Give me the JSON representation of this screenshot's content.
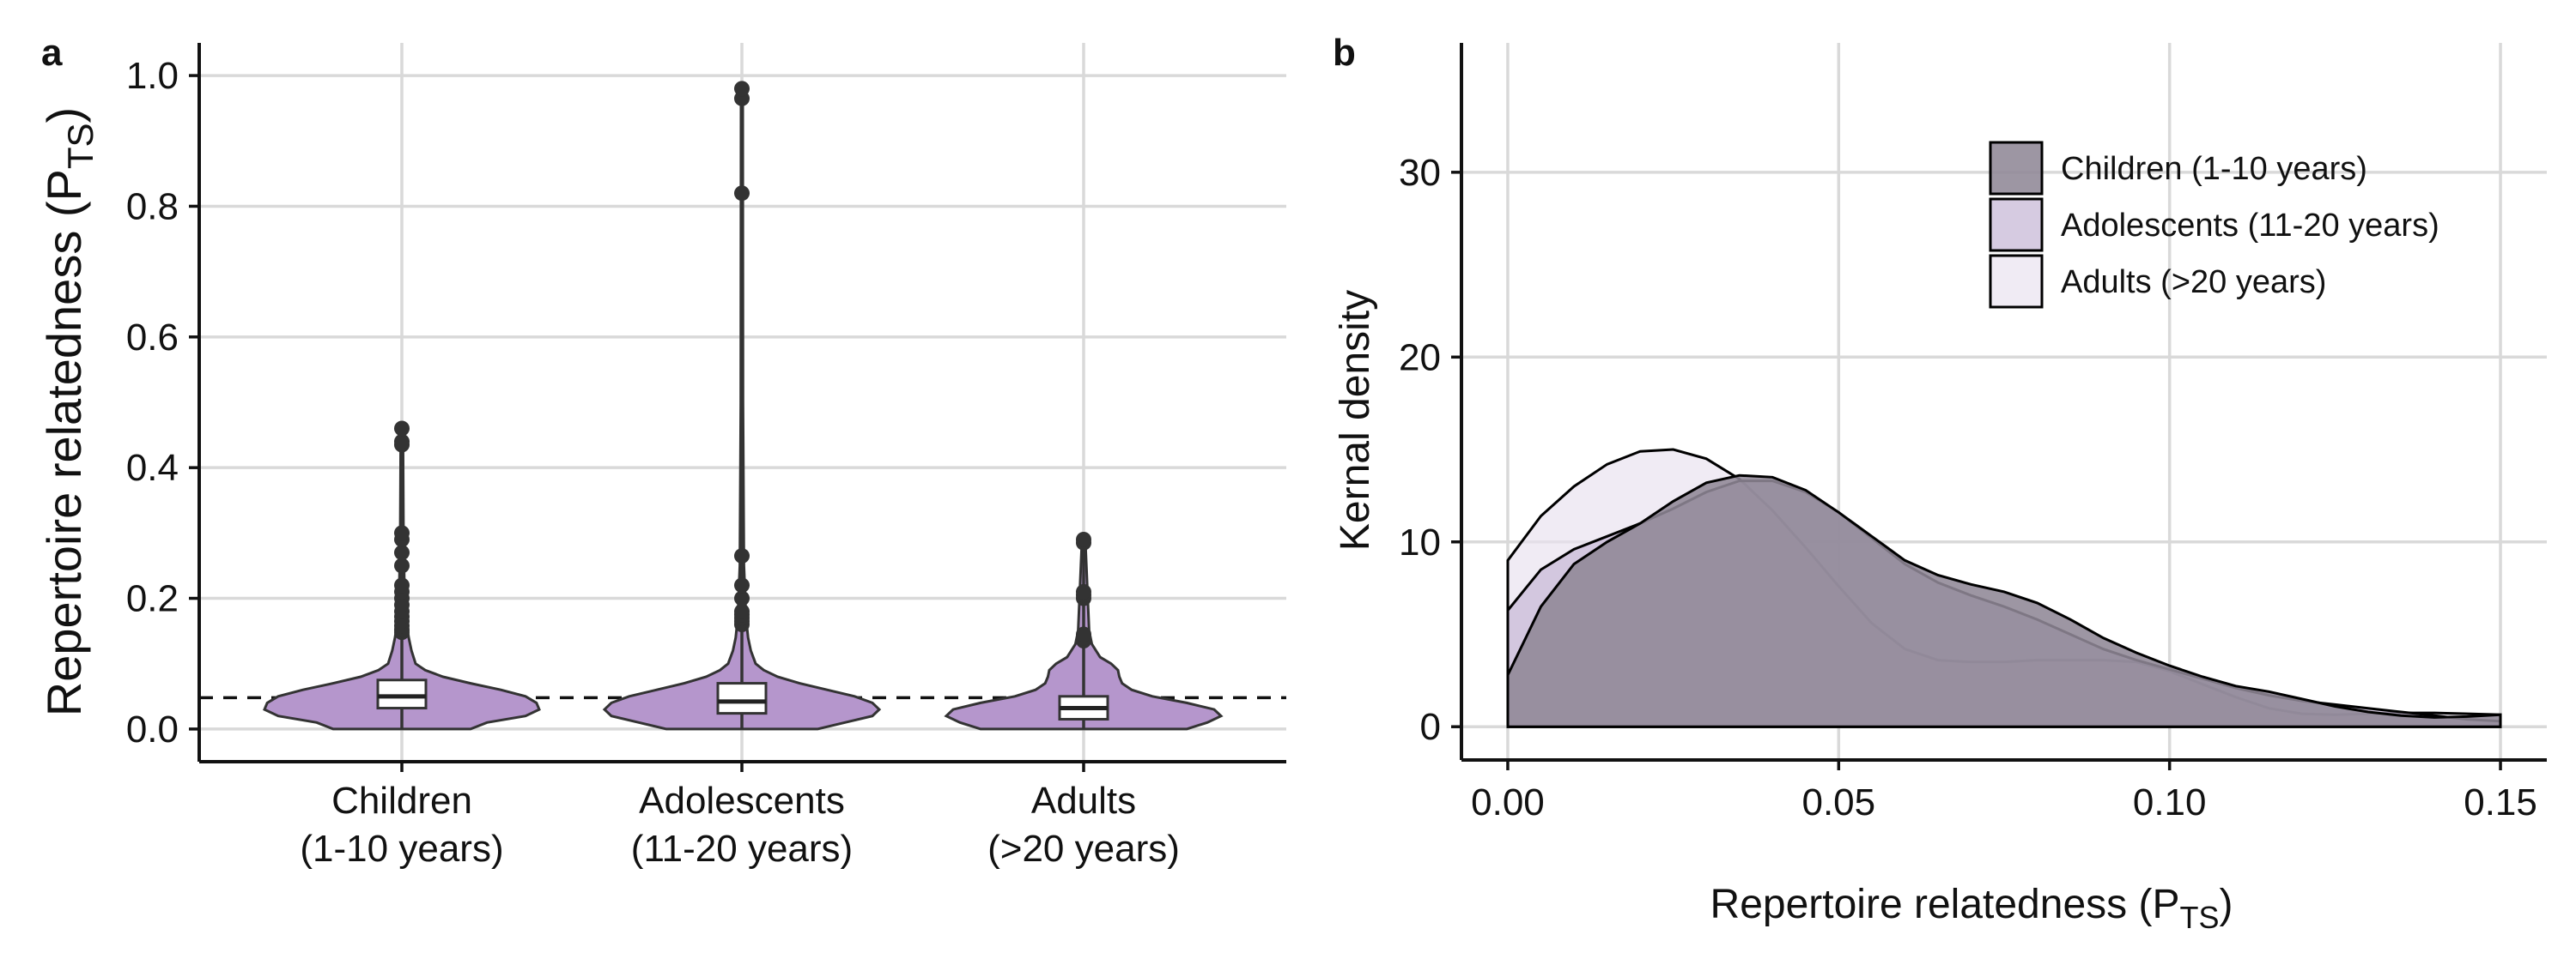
{
  "chart_data": [
    {
      "panel": "a",
      "type": "violin",
      "categories": [
        "Children\n(1-10 years)",
        "Adolescents\n(11-20 years)",
        "Adults\n(>20 years)"
      ],
      "ylabel": "Repertoire relatedness (P_TS)",
      "ylabel_main": "Repertoire relatedness (P",
      "ylabel_sub": "TS",
      "ylabel_close": ")",
      "ylim": [
        -0.05,
        1.05
      ],
      "yticks": [
        0.0,
        0.2,
        0.4,
        0.6,
        0.8,
        1.0
      ],
      "ytick_labels": [
        "0.0",
        "0.2",
        "0.4",
        "0.6",
        "0.8",
        "1.0"
      ],
      "reference_line": 0.048,
      "fill_color": "#b596cc",
      "groups": [
        {
          "box": {
            "q1": 0.032,
            "median": 0.05,
            "q3": 0.075,
            "whisker_low": 0.0,
            "whisker_high": 0.145
          },
          "outliers": [
            0.148,
            0.152,
            0.158,
            0.165,
            0.172,
            0.18,
            0.19,
            0.2,
            0.21,
            0.22,
            0.25,
            0.27,
            0.29,
            0.3,
            0.435,
            0.44,
            0.46
          ],
          "violin_profile": [
            [
              0.0,
              0.5
            ],
            [
              0.01,
              0.62
            ],
            [
              0.02,
              0.9
            ],
            [
              0.03,
              1.0
            ],
            [
              0.04,
              0.98
            ],
            [
              0.05,
              0.9
            ],
            [
              0.06,
              0.72
            ],
            [
              0.07,
              0.5
            ],
            [
              0.08,
              0.3
            ],
            [
              0.09,
              0.17
            ],
            [
              0.1,
              0.1
            ],
            [
              0.12,
              0.07
            ],
            [
              0.14,
              0.05
            ],
            [
              0.16,
              0.035
            ],
            [
              0.2,
              0.02
            ],
            [
              0.3,
              0.012
            ],
            [
              0.46,
              0.008
            ]
          ]
        },
        {
          "box": {
            "q1": 0.024,
            "median": 0.042,
            "q3": 0.07,
            "whisker_low": 0.0,
            "whisker_high": 0.14
          },
          "outliers": [
            0.16,
            0.165,
            0.17,
            0.175,
            0.18,
            0.2,
            0.22,
            0.265,
            0.82,
            0.965,
            0.98
          ],
          "violin_profile": [
            [
              0.0,
              0.55
            ],
            [
              0.01,
              0.75
            ],
            [
              0.02,
              0.95
            ],
            [
              0.03,
              1.0
            ],
            [
              0.04,
              0.95
            ],
            [
              0.05,
              0.82
            ],
            [
              0.06,
              0.62
            ],
            [
              0.07,
              0.42
            ],
            [
              0.08,
              0.26
            ],
            [
              0.09,
              0.16
            ],
            [
              0.1,
              0.1
            ],
            [
              0.12,
              0.065
            ],
            [
              0.14,
              0.045
            ],
            [
              0.17,
              0.03
            ],
            [
              0.25,
              0.015
            ],
            [
              0.5,
              0.008
            ],
            [
              0.98,
              0.006
            ]
          ]
        },
        {
          "box": {
            "q1": 0.015,
            "median": 0.032,
            "q3": 0.05,
            "whisker_low": 0.0,
            "whisker_high": 0.13
          },
          "outliers": [
            0.135,
            0.14,
            0.145,
            0.2,
            0.205,
            0.21,
            0.285,
            0.29
          ],
          "violin_profile": [
            [
              0.0,
              0.75
            ],
            [
              0.01,
              0.9
            ],
            [
              0.02,
              1.0
            ],
            [
              0.03,
              0.95
            ],
            [
              0.04,
              0.75
            ],
            [
              0.05,
              0.5
            ],
            [
              0.06,
              0.35
            ],
            [
              0.07,
              0.28
            ],
            [
              0.08,
              0.26
            ],
            [
              0.09,
              0.25
            ],
            [
              0.1,
              0.2
            ],
            [
              0.11,
              0.12
            ],
            [
              0.13,
              0.06
            ],
            [
              0.15,
              0.04
            ],
            [
              0.2,
              0.03
            ],
            [
              0.25,
              0.02
            ],
            [
              0.29,
              0.012
            ]
          ]
        }
      ]
    },
    {
      "panel": "b",
      "type": "area",
      "xlabel": "Repertoire relatedness (P_TS)",
      "xlabel_main": "Repertoire relatedness (P",
      "xlabel_sub": "TS",
      "xlabel_close": ")",
      "ylabel": "Kernal density",
      "xlim": [
        -0.007,
        0.157
      ],
      "ylim": [
        -1.8,
        37
      ],
      "xticks": [
        0.0,
        0.05,
        0.1,
        0.15
      ],
      "xtick_labels": [
        "0.00",
        "0.05",
        "0.10",
        "0.15"
      ],
      "yticks": [
        0,
        10,
        20,
        30
      ],
      "ytick_labels": [
        "0",
        "10",
        "20",
        "30"
      ],
      "legend_position": "top-right",
      "series": [
        {
          "name": "Children (1-10 years)",
          "color": "#8f8796",
          "opacity": 0.88,
          "x": [
            0.0,
            0.005,
            0.01,
            0.015,
            0.02,
            0.025,
            0.03,
            0.035,
            0.04,
            0.045,
            0.05,
            0.055,
            0.06,
            0.065,
            0.07,
            0.075,
            0.08,
            0.085,
            0.09,
            0.095,
            0.1,
            0.105,
            0.11,
            0.115,
            0.12,
            0.125,
            0.13,
            0.135,
            0.14,
            0.145,
            0.15
          ],
          "y": [
            2.8,
            6.5,
            8.8,
            10.0,
            11.0,
            12.2,
            13.2,
            13.6,
            13.5,
            12.8,
            11.6,
            10.3,
            9.0,
            8.2,
            7.7,
            7.3,
            6.7,
            5.8,
            4.8,
            4.0,
            3.3,
            2.7,
            2.2,
            1.9,
            1.5,
            1.1,
            0.8,
            0.6,
            0.5,
            0.55,
            0.65
          ]
        },
        {
          "name": "Adolescents (11-20 years)",
          "color": "#cbbcd9",
          "opacity": 0.78,
          "x": [
            0.0,
            0.005,
            0.01,
            0.015,
            0.02,
            0.025,
            0.03,
            0.035,
            0.04,
            0.045,
            0.05,
            0.055,
            0.06,
            0.065,
            0.07,
            0.075,
            0.08,
            0.085,
            0.09,
            0.095,
            0.1,
            0.105,
            0.11,
            0.115,
            0.12,
            0.125,
            0.13,
            0.135,
            0.14,
            0.145,
            0.15
          ],
          "y": [
            6.3,
            8.5,
            9.6,
            10.3,
            11.0,
            11.8,
            12.7,
            13.3,
            13.3,
            12.7,
            11.6,
            10.2,
            8.8,
            7.8,
            7.1,
            6.5,
            5.8,
            5.0,
            4.2,
            3.6,
            3.1,
            2.6,
            2.1,
            1.7,
            1.4,
            1.2,
            1.0,
            0.8,
            0.6,
            0.4,
            0.3
          ]
        },
        {
          "name": "Adults (>20 years)",
          "color": "#e9e1ef",
          "opacity": 0.68,
          "x": [
            0.0,
            0.005,
            0.01,
            0.015,
            0.02,
            0.025,
            0.03,
            0.035,
            0.04,
            0.045,
            0.05,
            0.055,
            0.06,
            0.065,
            0.07,
            0.075,
            0.08,
            0.085,
            0.09,
            0.095,
            0.1,
            0.105,
            0.11,
            0.115,
            0.12,
            0.125,
            0.13,
            0.135,
            0.14,
            0.145,
            0.15
          ],
          "y": [
            9.0,
            11.4,
            13.0,
            14.2,
            14.9,
            15.0,
            14.5,
            13.4,
            11.7,
            9.7,
            7.6,
            5.6,
            4.2,
            3.6,
            3.5,
            3.5,
            3.6,
            3.6,
            3.6,
            3.5,
            3.0,
            2.3,
            1.6,
            1.0,
            0.7,
            0.65,
            0.7,
            0.75,
            0.75,
            0.7,
            0.65
          ]
        }
      ]
    }
  ]
}
